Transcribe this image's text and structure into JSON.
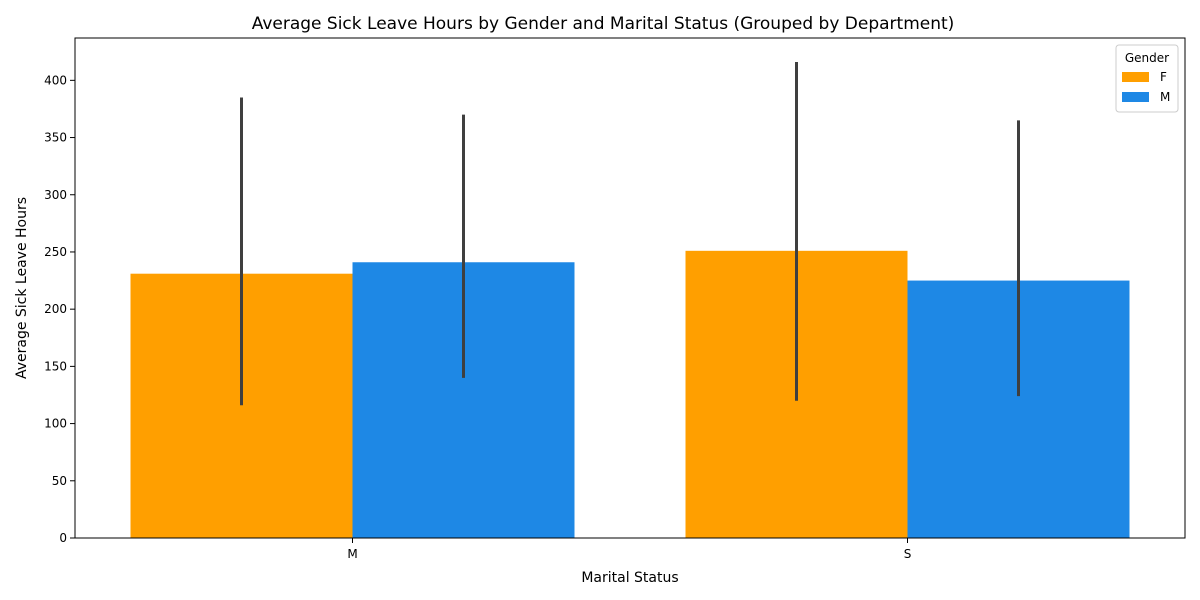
{
  "chart_data": {
    "type": "bar",
    "title": "Average Sick Leave Hours by Gender and Marital Status (Grouped by Department)",
    "xlabel": "Marital Status",
    "ylabel": "Average Sick Leave Hours",
    "categories": [
      "M",
      "S"
    ],
    "series": [
      {
        "name": "F",
        "color": "#ff9f00",
        "values": [
          231,
          251
        ],
        "error_low": [
          116,
          120
        ],
        "error_high": [
          385,
          416
        ]
      },
      {
        "name": "M",
        "color": "#1e88e5",
        "values": [
          241,
          225
        ],
        "error_low": [
          140,
          124
        ],
        "error_high": [
          370,
          365
        ]
      }
    ],
    "ylim": [
      0,
      437
    ],
    "yticks": [
      0,
      50,
      100,
      150,
      200,
      250,
      300,
      350,
      400
    ],
    "grid": false,
    "legend": {
      "title": "Gender",
      "placement": "top-right"
    },
    "error_bar_color": "#3f3f3f"
  }
}
